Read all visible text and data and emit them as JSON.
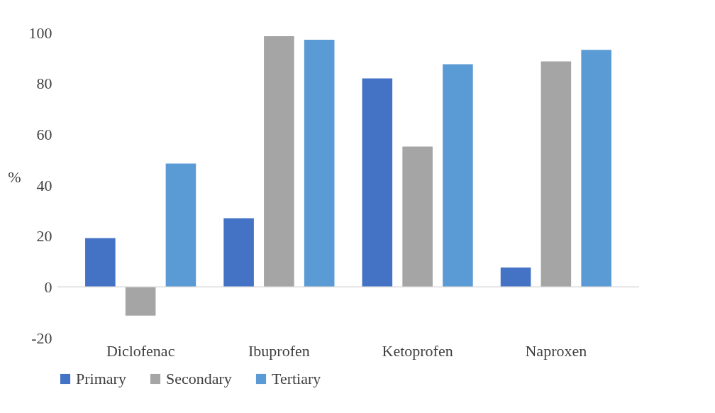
{
  "chart_data": {
    "type": "bar",
    "ylabel": "%",
    "categories": [
      "Diclofenac",
      "Ibuprofen",
      "Ketoprofen",
      "Naproxen"
    ],
    "series": [
      {
        "name": "Primary",
        "color": "#4472c4",
        "values": [
          19.2,
          27,
          82,
          7.6
        ]
      },
      {
        "name": "Secondary",
        "color": "#a5a5a5",
        "values": [
          -11.3,
          98.6,
          55.2,
          88.7
        ]
      },
      {
        "name": "Tertiary",
        "color": "#5b9bd5",
        "values": [
          48.5,
          97.2,
          87.6,
          93.2
        ]
      }
    ],
    "ylim": [
      -20,
      100
    ],
    "yticks": [
      -20,
      0,
      20,
      40,
      60,
      80,
      100
    ],
    "legend": "bottom"
  }
}
